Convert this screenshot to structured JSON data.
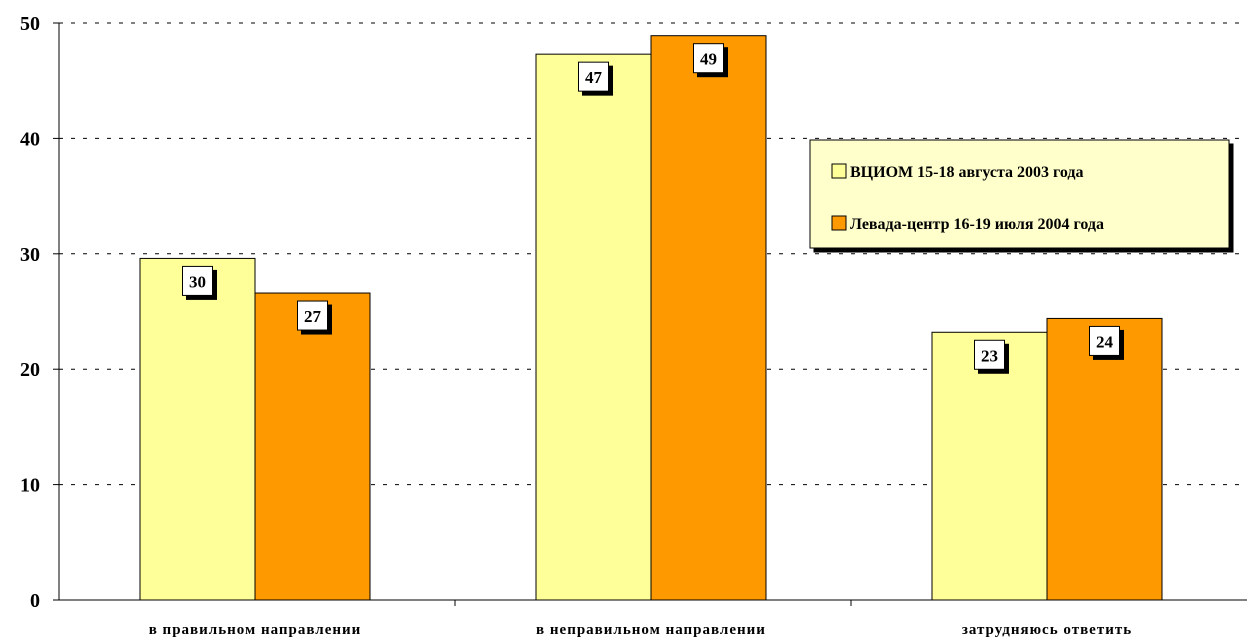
{
  "chart_data": {
    "type": "bar",
    "categories": [
      "в правильном направлении",
      "в неправильном направлении",
      "затрудняюсь ответить"
    ],
    "series": [
      {
        "name": "ВЦИОМ 15-18 августа 2003 года",
        "values": [
          30,
          47,
          23
        ],
        "plotted": [
          29.6,
          47.3,
          23.2
        ],
        "color": "#ffff99"
      },
      {
        "name": "Левада-центр 16-19 июля 2004 года",
        "values": [
          27,
          49,
          24
        ],
        "plotted": [
          26.6,
          48.9,
          24.4
        ],
        "color": "#ff9900"
      }
    ],
    "yticks": [
      "0",
      "10",
      "20",
      "30",
      "40",
      "50"
    ],
    "ylim": [
      0,
      50
    ],
    "grid": true,
    "legend_position": "right"
  }
}
